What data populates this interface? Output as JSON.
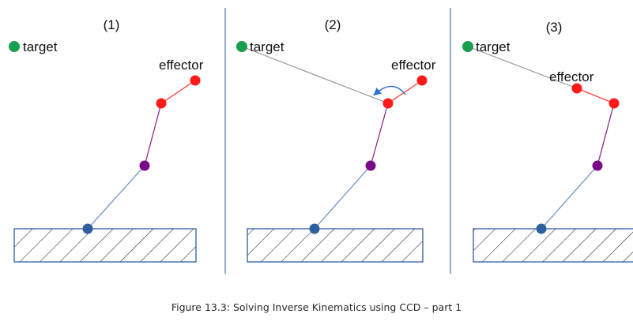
{
  "caption": "Figure 13.3: Solving Inverse Kinematics using CCD – part 1",
  "colors": {
    "target": "#1a9e50",
    "effector": "#ff1a1a",
    "elbow": "#7a0a88",
    "base_joint": "#2f5f9e",
    "segment_upper": "#8e2a8e",
    "segment_lower": "#6f93c4",
    "divider": "#6f93b8",
    "target_line": "#999999",
    "rotation_arrow": "#2f6fd0"
  },
  "panels": [
    {
      "number": "(1)",
      "target_label": "target",
      "effector_label": "effector"
    },
    {
      "number": "(2)",
      "target_label": "target",
      "effector_label": "effector"
    },
    {
      "number": "(3)",
      "target_label": "target",
      "effector_label": "effector"
    }
  ]
}
